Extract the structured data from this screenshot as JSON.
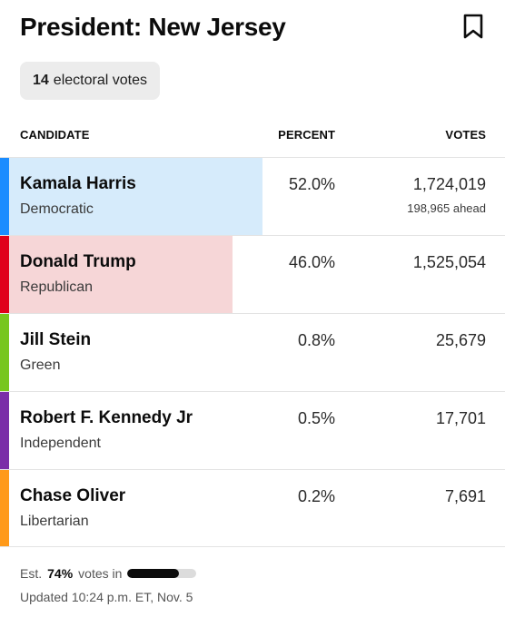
{
  "header": {
    "title": "President: New Jersey",
    "bookmark_icon": "bookmark-icon"
  },
  "electoral": {
    "count": "14",
    "label": "electoral votes"
  },
  "columns": {
    "candidate": "CANDIDATE",
    "percent": "PERCENT",
    "votes": "VOTES"
  },
  "candidates": [
    {
      "name": "Kamala Harris",
      "party": "Democratic",
      "percent": "52.0%",
      "votes": "1,724,019",
      "ahead": "198,965 ahead",
      "color": "#1a8cff",
      "fill_color": "#d6ebfb",
      "share": 0.52
    },
    {
      "name": "Donald Trump",
      "party": "Republican",
      "percent": "46.0%",
      "votes": "1,525,054",
      "ahead": "",
      "color": "#e0001b",
      "fill_color": "#f6d6d7",
      "share": 0.46
    },
    {
      "name": "Jill Stein",
      "party": "Green",
      "percent": "0.8%",
      "votes": "25,679",
      "ahead": "",
      "color": "#77c61e",
      "fill_color": "",
      "share": 0.008
    },
    {
      "name": "Robert F. Kennedy Jr",
      "party": "Independent",
      "percent": "0.5%",
      "votes": "17,701",
      "ahead": "",
      "color": "#7a2ea8",
      "fill_color": "",
      "share": 0.005
    },
    {
      "name": "Chase Oliver",
      "party": "Libertarian",
      "percent": "0.2%",
      "votes": "7,691",
      "ahead": "",
      "color": "#ff9a1a",
      "fill_color": "",
      "share": 0.002
    }
  ],
  "footer": {
    "est_prefix": "Est.",
    "est_value": "74%",
    "est_suffix": "votes in",
    "progress_fraction": 0.74,
    "updated": "Updated 10:24 p.m. ET, Nov. 5"
  }
}
